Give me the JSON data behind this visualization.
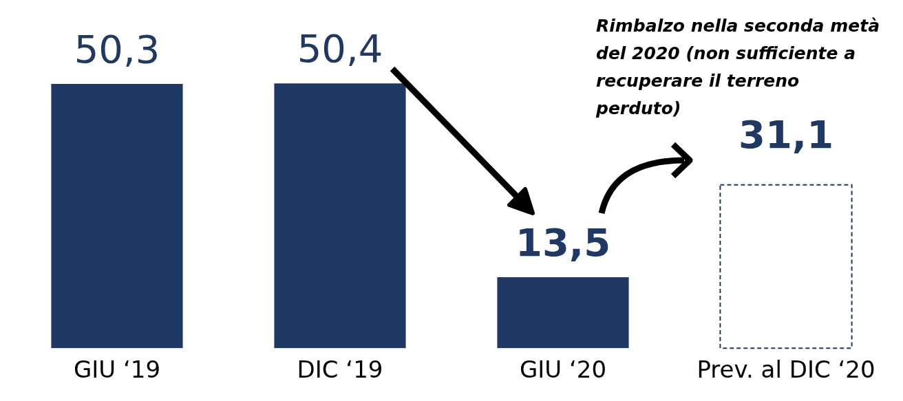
{
  "chart_data": {
    "type": "bar",
    "categories": [
      "GIU ‘19",
      "DIC ‘19",
      "GIU ‘20",
      "Prev. al DIC ‘20"
    ],
    "series": [
      {
        "color": "#203864",
        "values": [
          50.3,
          50.4,
          13.5,
          null
        ],
        "value_labels": [
          "50,3",
          "50,4",
          "13,5",
          null
        ]
      },
      {
        "color": "#203864",
        "line_style": "dashed",
        "values": [
          null,
          null,
          null,
          31.1
        ],
        "value_labels": [
          null,
          null,
          null,
          "31,1"
        ]
      }
    ],
    "annotations": [
      "Rimbalzo nella seconda metà del 2020 (non sufficiente a recuperare il terreno perduto)"
    ],
    "grid": false,
    "legend": false
  }
}
